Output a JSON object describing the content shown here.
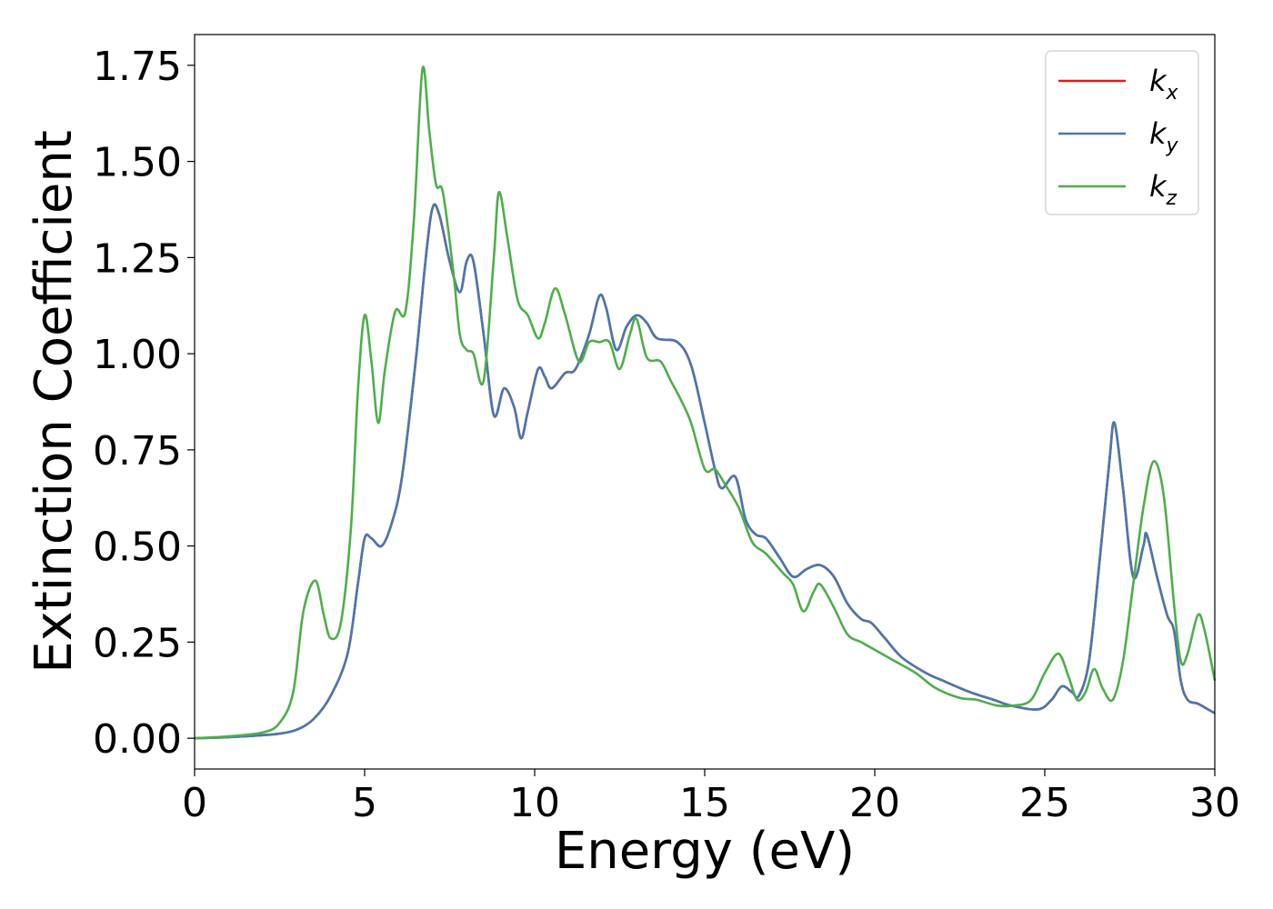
{
  "chart_data": {
    "type": "line",
    "title": "",
    "xlabel": "Energy (eV)",
    "ylabel": "Extinction Coefficient",
    "xlim": [
      0,
      30
    ],
    "ylim": [
      -0.08,
      1.83
    ],
    "xticks": [
      0,
      5,
      10,
      15,
      20,
      25,
      30
    ],
    "xtick_labels": [
      "0",
      "5",
      "10",
      "15",
      "20",
      "25",
      "30"
    ],
    "yticks": [
      0,
      0.25,
      0.5,
      0.75,
      1.0,
      1.25,
      1.5,
      1.75
    ],
    "ytick_labels": [
      "0.00",
      "0.25",
      "0.50",
      "0.75",
      "1.00",
      "1.25",
      "1.50",
      "1.75"
    ],
    "grid": false,
    "legend_position": "top-right",
    "series": [
      {
        "name": "k_x",
        "legend_base": "k",
        "legend_sub": "x",
        "color": "#e41a1c",
        "points": [
          [
            0,
            0.0
          ],
          [
            1,
            0.003
          ],
          [
            2,
            0.008
          ],
          [
            2.5,
            0.012
          ],
          [
            3,
            0.022
          ],
          [
            3.5,
            0.05
          ],
          [
            4,
            0.11
          ],
          [
            4.5,
            0.22
          ],
          [
            4.8,
            0.4
          ],
          [
            5,
            0.52
          ],
          [
            5.2,
            0.52
          ],
          [
            5.5,
            0.5
          ],
          [
            5.8,
            0.56
          ],
          [
            6.1,
            0.68
          ],
          [
            6.5,
            0.98
          ],
          [
            6.8,
            1.25
          ],
          [
            7.0,
            1.38
          ],
          [
            7.2,
            1.36
          ],
          [
            7.5,
            1.24
          ],
          [
            7.8,
            1.16
          ],
          [
            8.0,
            1.24
          ],
          [
            8.2,
            1.24
          ],
          [
            8.5,
            1.05
          ],
          [
            8.8,
            0.84
          ],
          [
            9.1,
            0.91
          ],
          [
            9.4,
            0.86
          ],
          [
            9.6,
            0.78
          ],
          [
            9.8,
            0.85
          ],
          [
            10.1,
            0.96
          ],
          [
            10.3,
            0.94
          ],
          [
            10.5,
            0.91
          ],
          [
            10.9,
            0.95
          ],
          [
            11.2,
            0.96
          ],
          [
            11.6,
            1.05
          ],
          [
            11.9,
            1.15
          ],
          [
            12.1,
            1.12
          ],
          [
            12.4,
            1.01
          ],
          [
            12.7,
            1.07
          ],
          [
            13.0,
            1.1
          ],
          [
            13.3,
            1.08
          ],
          [
            13.6,
            1.04
          ],
          [
            14.2,
            1.03
          ],
          [
            14.6,
            0.97
          ],
          [
            15.0,
            0.82
          ],
          [
            15.3,
            0.7
          ],
          [
            15.5,
            0.65
          ],
          [
            15.9,
            0.68
          ],
          [
            16.2,
            0.57
          ],
          [
            16.5,
            0.53
          ],
          [
            16.8,
            0.52
          ],
          [
            17.2,
            0.47
          ],
          [
            17.6,
            0.42
          ],
          [
            18.0,
            0.44
          ],
          [
            18.4,
            0.45
          ],
          [
            18.8,
            0.42
          ],
          [
            19.2,
            0.35
          ],
          [
            19.6,
            0.31
          ],
          [
            19.9,
            0.3
          ],
          [
            20.3,
            0.26
          ],
          [
            20.8,
            0.21
          ],
          [
            21.5,
            0.17
          ],
          [
            22.0,
            0.15
          ],
          [
            22.8,
            0.12
          ],
          [
            23.5,
            0.1
          ],
          [
            24.0,
            0.085
          ],
          [
            24.8,
            0.075
          ],
          [
            25.2,
            0.1
          ],
          [
            25.5,
            0.135
          ],
          [
            25.8,
            0.12
          ],
          [
            26.0,
            0.11
          ],
          [
            26.3,
            0.2
          ],
          [
            26.6,
            0.45
          ],
          [
            26.9,
            0.72
          ],
          [
            27.05,
            0.82
          ],
          [
            27.3,
            0.65
          ],
          [
            27.6,
            0.42
          ],
          [
            27.9,
            0.5
          ],
          [
            28.0,
            0.53
          ],
          [
            28.3,
            0.42
          ],
          [
            28.6,
            0.32
          ],
          [
            28.8,
            0.28
          ],
          [
            29.0,
            0.15
          ],
          [
            29.2,
            0.1
          ],
          [
            29.5,
            0.09
          ],
          [
            29.8,
            0.075
          ],
          [
            30,
            0.065
          ]
        ]
      },
      {
        "name": "k_y",
        "legend_base": "k",
        "legend_sub": "y",
        "color": "#4878b0",
        "points": [
          [
            0,
            0.0
          ],
          [
            1,
            0.003
          ],
          [
            2,
            0.008
          ],
          [
            2.5,
            0.012
          ],
          [
            3,
            0.022
          ],
          [
            3.5,
            0.05
          ],
          [
            4,
            0.11
          ],
          [
            4.5,
            0.22
          ],
          [
            4.8,
            0.4
          ],
          [
            5,
            0.52
          ],
          [
            5.2,
            0.52
          ],
          [
            5.5,
            0.5
          ],
          [
            5.8,
            0.56
          ],
          [
            6.1,
            0.68
          ],
          [
            6.5,
            0.98
          ],
          [
            6.8,
            1.25
          ],
          [
            7.0,
            1.38
          ],
          [
            7.2,
            1.36
          ],
          [
            7.5,
            1.24
          ],
          [
            7.8,
            1.16
          ],
          [
            8.0,
            1.24
          ],
          [
            8.2,
            1.24
          ],
          [
            8.5,
            1.05
          ],
          [
            8.8,
            0.84
          ],
          [
            9.1,
            0.91
          ],
          [
            9.4,
            0.86
          ],
          [
            9.6,
            0.78
          ],
          [
            9.8,
            0.85
          ],
          [
            10.1,
            0.96
          ],
          [
            10.3,
            0.94
          ],
          [
            10.5,
            0.91
          ],
          [
            10.9,
            0.95
          ],
          [
            11.2,
            0.96
          ],
          [
            11.6,
            1.05
          ],
          [
            11.9,
            1.15
          ],
          [
            12.1,
            1.12
          ],
          [
            12.4,
            1.01
          ],
          [
            12.7,
            1.07
          ],
          [
            13.0,
            1.1
          ],
          [
            13.3,
            1.08
          ],
          [
            13.6,
            1.04
          ],
          [
            14.2,
            1.03
          ],
          [
            14.6,
            0.97
          ],
          [
            15.0,
            0.82
          ],
          [
            15.3,
            0.7
          ],
          [
            15.5,
            0.65
          ],
          [
            15.9,
            0.68
          ],
          [
            16.2,
            0.57
          ],
          [
            16.5,
            0.53
          ],
          [
            16.8,
            0.52
          ],
          [
            17.2,
            0.47
          ],
          [
            17.6,
            0.42
          ],
          [
            18.0,
            0.44
          ],
          [
            18.4,
            0.45
          ],
          [
            18.8,
            0.42
          ],
          [
            19.2,
            0.35
          ],
          [
            19.6,
            0.31
          ],
          [
            19.9,
            0.3
          ],
          [
            20.3,
            0.26
          ],
          [
            20.8,
            0.21
          ],
          [
            21.5,
            0.17
          ],
          [
            22.0,
            0.15
          ],
          [
            22.8,
            0.12
          ],
          [
            23.5,
            0.1
          ],
          [
            24.0,
            0.085
          ],
          [
            24.8,
            0.075
          ],
          [
            25.2,
            0.1
          ],
          [
            25.5,
            0.135
          ],
          [
            25.8,
            0.12
          ],
          [
            26.0,
            0.11
          ],
          [
            26.3,
            0.2
          ],
          [
            26.6,
            0.45
          ],
          [
            26.9,
            0.72
          ],
          [
            27.05,
            0.82
          ],
          [
            27.3,
            0.65
          ],
          [
            27.6,
            0.42
          ],
          [
            27.9,
            0.5
          ],
          [
            28.0,
            0.53
          ],
          [
            28.3,
            0.42
          ],
          [
            28.6,
            0.32
          ],
          [
            28.8,
            0.28
          ],
          [
            29.0,
            0.15
          ],
          [
            29.2,
            0.1
          ],
          [
            29.5,
            0.09
          ],
          [
            29.8,
            0.075
          ],
          [
            30,
            0.065
          ]
        ]
      },
      {
        "name": "k_z",
        "legend_base": "k",
        "legend_sub": "z",
        "color": "#4daf4a",
        "points": [
          [
            0,
            0.0
          ],
          [
            1,
            0.005
          ],
          [
            2,
            0.015
          ],
          [
            2.5,
            0.04
          ],
          [
            2.9,
            0.12
          ],
          [
            3.2,
            0.33
          ],
          [
            3.55,
            0.41
          ],
          [
            3.8,
            0.32
          ],
          [
            4.0,
            0.26
          ],
          [
            4.3,
            0.3
          ],
          [
            4.6,
            0.55
          ],
          [
            4.8,
            0.9
          ],
          [
            5.0,
            1.1
          ],
          [
            5.2,
            0.98
          ],
          [
            5.4,
            0.82
          ],
          [
            5.6,
            0.96
          ],
          [
            5.9,
            1.11
          ],
          [
            6.2,
            1.11
          ],
          [
            6.45,
            1.35
          ],
          [
            6.7,
            1.74
          ],
          [
            6.9,
            1.58
          ],
          [
            7.1,
            1.44
          ],
          [
            7.3,
            1.42
          ],
          [
            7.6,
            1.22
          ],
          [
            7.8,
            1.05
          ],
          [
            8.0,
            1.01
          ],
          [
            8.2,
            1.0
          ],
          [
            8.5,
            0.93
          ],
          [
            8.8,
            1.25
          ],
          [
            8.95,
            1.42
          ],
          [
            9.2,
            1.3
          ],
          [
            9.5,
            1.14
          ],
          [
            9.8,
            1.1
          ],
          [
            10.1,
            1.04
          ],
          [
            10.3,
            1.08
          ],
          [
            10.6,
            1.17
          ],
          [
            10.9,
            1.1
          ],
          [
            11.3,
            0.98
          ],
          [
            11.6,
            1.03
          ],
          [
            11.9,
            1.03
          ],
          [
            12.2,
            1.03
          ],
          [
            12.5,
            0.96
          ],
          [
            12.8,
            1.05
          ],
          [
            13.0,
            1.09
          ],
          [
            13.3,
            0.99
          ],
          [
            13.7,
            0.98
          ],
          [
            14.0,
            0.93
          ],
          [
            14.3,
            0.88
          ],
          [
            14.6,
            0.82
          ],
          [
            15.0,
            0.7
          ],
          [
            15.3,
            0.7
          ],
          [
            15.6,
            0.66
          ],
          [
            16.0,
            0.6
          ],
          [
            16.4,
            0.51
          ],
          [
            16.8,
            0.48
          ],
          [
            17.3,
            0.43
          ],
          [
            17.6,
            0.4
          ],
          [
            17.9,
            0.33
          ],
          [
            18.2,
            0.38
          ],
          [
            18.4,
            0.4
          ],
          [
            18.8,
            0.34
          ],
          [
            19.2,
            0.27
          ],
          [
            19.6,
            0.25
          ],
          [
            20.0,
            0.23
          ],
          [
            20.6,
            0.2
          ],
          [
            21.2,
            0.17
          ],
          [
            21.8,
            0.13
          ],
          [
            22.5,
            0.105
          ],
          [
            23.0,
            0.1
          ],
          [
            23.6,
            0.085
          ],
          [
            24.1,
            0.085
          ],
          [
            24.6,
            0.1
          ],
          [
            25.0,
            0.17
          ],
          [
            25.4,
            0.22
          ],
          [
            25.7,
            0.16
          ],
          [
            25.95,
            0.1
          ],
          [
            26.2,
            0.12
          ],
          [
            26.45,
            0.18
          ],
          [
            26.7,
            0.13
          ],
          [
            27.0,
            0.1
          ],
          [
            27.3,
            0.2
          ],
          [
            27.6,
            0.4
          ],
          [
            27.9,
            0.6
          ],
          [
            28.2,
            0.72
          ],
          [
            28.5,
            0.63
          ],
          [
            28.8,
            0.35
          ],
          [
            29.0,
            0.2
          ],
          [
            29.2,
            0.22
          ],
          [
            29.5,
            0.32
          ],
          [
            29.7,
            0.28
          ],
          [
            30,
            0.15
          ]
        ]
      }
    ]
  }
}
